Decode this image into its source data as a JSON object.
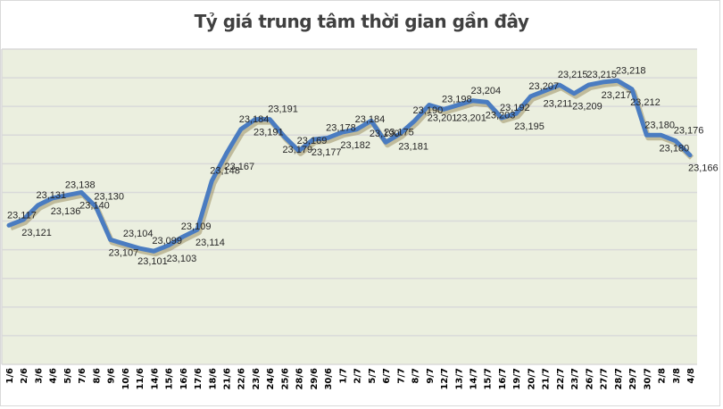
{
  "title": "Tỷ giá trung tâm thời gian gần đây",
  "colors": {
    "plot_bg": "#ebefdf",
    "grid": "#d9d9d9",
    "line": "#4a7cc1",
    "shadow": "#8b7d4a",
    "label": "#262626"
  },
  "chart_data": {
    "type": "line",
    "title": "Tỷ giá trung tâm thời gian gần đây",
    "xlabel": "",
    "ylabel": "",
    "ylim": [
      23020,
      23240
    ],
    "grid": true,
    "legend": "none",
    "categories": [
      "1/6",
      "2/6",
      "3/6",
      "4/6",
      "5/6",
      "7/6",
      "8/6",
      "9/6",
      "10/6",
      "11/6",
      "14/6",
      "15/6",
      "16/6",
      "17/6",
      "18/6",
      "21/6",
      "22/6",
      "23/6",
      "24/6",
      "25/6",
      "28/6",
      "29/6",
      "30/6",
      "1/7",
      "2/7",
      "5/7",
      "6/7",
      "7/7",
      "8/7",
      "9/7",
      "12/7",
      "13/7",
      "14/7",
      "15/7",
      "16/7",
      "19/7",
      "20/7",
      "21/7",
      "22/7",
      "23/7",
      "26/7",
      "27/7",
      "28/7",
      "29/7",
      "30/7",
      "2/8",
      "3/8",
      "4/8"
    ],
    "series": [
      {
        "name": "Tỷ giá trung tâm",
        "values": [
          23117,
          23121,
          23131,
          23136,
          23138,
          23140,
          23130,
          23107,
          23104,
          23101,
          23099,
          23103,
          23109,
          23114,
          23148,
          23167,
          23184,
          23191,
          23191,
          23179,
          23169,
          23177,
          23178,
          23182,
          23184,
          23190,
          23175,
          23181,
          23190,
          23201,
          23198,
          23201,
          23204,
          23203,
          23192,
          23195,
          23207,
          23211,
          23215,
          23209,
          23215,
          23217,
          23218,
          23212,
          23180,
          23180,
          23176,
          23166
        ]
      }
    ]
  }
}
